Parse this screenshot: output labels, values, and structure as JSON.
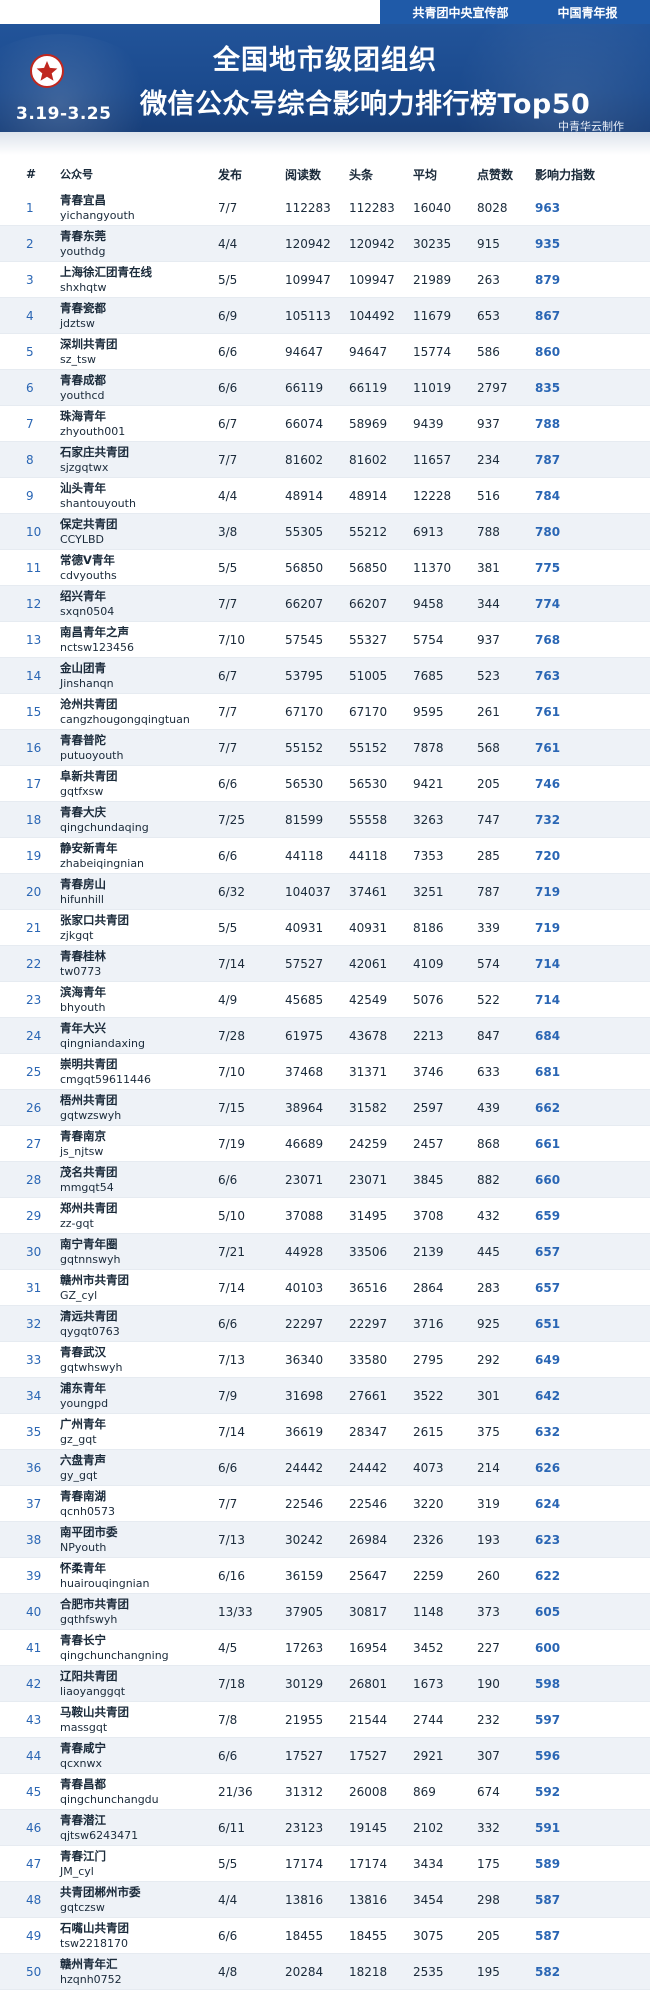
{
  "header": {
    "org": "共青团中央宣传部",
    "paper": "中国青年报",
    "title_line1": "全国地市级团组织",
    "title_line2": "微信公众号综合影响力排行榜Top50",
    "period": "3.19-3.25",
    "maker": "中青华云制作"
  },
  "columns": {
    "rank": "#",
    "account": "公众号",
    "publish": "发布",
    "reads": "阅读数",
    "headline": "头条",
    "average": "平均",
    "likes": "点赞数",
    "influence": "影响力指数"
  },
  "rows": [
    {
      "rank": "1",
      "name": "青春宜昌",
      "id": "yichangyouth",
      "publish": "7/7",
      "reads": "112283",
      "headline": "112283",
      "average": "16040",
      "likes": "8028",
      "influence": "963"
    },
    {
      "rank": "2",
      "name": "青春东莞",
      "id": "youthdg",
      "publish": "4/4",
      "reads": "120942",
      "headline": "120942",
      "average": "30235",
      "likes": "915",
      "influence": "935"
    },
    {
      "rank": "3",
      "name": "上海徐汇团青在线",
      "id": "shxhqtw",
      "publish": "5/5",
      "reads": "109947",
      "headline": "109947",
      "average": "21989",
      "likes": "263",
      "influence": "879"
    },
    {
      "rank": "4",
      "name": "青春瓷都",
      "id": "jdztsw",
      "publish": "6/9",
      "reads": "105113",
      "headline": "104492",
      "average": "11679",
      "likes": "653",
      "influence": "867"
    },
    {
      "rank": "5",
      "name": "深圳共青团",
      "id": "sz_tsw",
      "publish": "6/6",
      "reads": "94647",
      "headline": "94647",
      "average": "15774",
      "likes": "586",
      "influence": "860"
    },
    {
      "rank": "6",
      "name": "青春成都",
      "id": "youthcd",
      "publish": "6/6",
      "reads": "66119",
      "headline": "66119",
      "average": "11019",
      "likes": "2797",
      "influence": "835"
    },
    {
      "rank": "7",
      "name": "珠海青年",
      "id": "zhyouth001",
      "publish": "6/7",
      "reads": "66074",
      "headline": "58969",
      "average": "9439",
      "likes": "937",
      "influence": "788"
    },
    {
      "rank": "8",
      "name": "石家庄共青团",
      "id": "sjzgqtwx",
      "publish": "7/7",
      "reads": "81602",
      "headline": "81602",
      "average": "11657",
      "likes": "234",
      "influence": "787"
    },
    {
      "rank": "9",
      "name": "汕头青年",
      "id": "shantouyouth",
      "publish": "4/4",
      "reads": "48914",
      "headline": "48914",
      "average": "12228",
      "likes": "516",
      "influence": "784"
    },
    {
      "rank": "10",
      "name": "保定共青团",
      "id": "CCYLBD",
      "publish": "3/8",
      "reads": "55305",
      "headline": "55212",
      "average": "6913",
      "likes": "788",
      "influence": "780"
    },
    {
      "rank": "11",
      "name": "常德V青年",
      "id": "cdvyouths",
      "publish": "5/5",
      "reads": "56850",
      "headline": "56850",
      "average": "11370",
      "likes": "381",
      "influence": "775"
    },
    {
      "rank": "12",
      "name": "绍兴青年",
      "id": "sxqn0504",
      "publish": "7/7",
      "reads": "66207",
      "headline": "66207",
      "average": "9458",
      "likes": "344",
      "influence": "774"
    },
    {
      "rank": "13",
      "name": "南昌青年之声",
      "id": "nctsw123456",
      "publish": "7/10",
      "reads": "57545",
      "headline": "55327",
      "average": "5754",
      "likes": "937",
      "influence": "768"
    },
    {
      "rank": "14",
      "name": "金山团青",
      "id": "Jinshanqn",
      "publish": "6/7",
      "reads": "53795",
      "headline": "51005",
      "average": "7685",
      "likes": "523",
      "influence": "763"
    },
    {
      "rank": "15",
      "name": "沧州共青团",
      "id": "cangzhougongqingtuan",
      "publish": "7/7",
      "reads": "67170",
      "headline": "67170",
      "average": "9595",
      "likes": "261",
      "influence": "761"
    },
    {
      "rank": "16",
      "name": "青春普陀",
      "id": "putuoyouth",
      "publish": "7/7",
      "reads": "55152",
      "headline": "55152",
      "average": "7878",
      "likes": "568",
      "influence": "761"
    },
    {
      "rank": "17",
      "name": "阜新共青团",
      "id": "gqtfxsw",
      "publish": "6/6",
      "reads": "56530",
      "headline": "56530",
      "average": "9421",
      "likes": "205",
      "influence": "746"
    },
    {
      "rank": "18",
      "name": "青春大庆",
      "id": "qingchundaqing",
      "publish": "7/25",
      "reads": "81599",
      "headline": "55558",
      "average": "3263",
      "likes": "747",
      "influence": "732"
    },
    {
      "rank": "19",
      "name": "静安新青年",
      "id": "zhabeiqingnian",
      "publish": "6/6",
      "reads": "44118",
      "headline": "44118",
      "average": "7353",
      "likes": "285",
      "influence": "720"
    },
    {
      "rank": "20",
      "name": "青春房山",
      "id": "hifunhill",
      "publish": "6/32",
      "reads": "104037",
      "headline": "37461",
      "average": "3251",
      "likes": "787",
      "influence": "719"
    },
    {
      "rank": "21",
      "name": "张家口共青团",
      "id": "zjkgqt",
      "publish": "5/5",
      "reads": "40931",
      "headline": "40931",
      "average": "8186",
      "likes": "339",
      "influence": "719"
    },
    {
      "rank": "22",
      "name": "青春桂林",
      "id": "tw0773",
      "publish": "7/14",
      "reads": "57527",
      "headline": "42061",
      "average": "4109",
      "likes": "574",
      "influence": "714"
    },
    {
      "rank": "23",
      "name": "滨海青年",
      "id": "bhyouth",
      "publish": "4/9",
      "reads": "45685",
      "headline": "42549",
      "average": "5076",
      "likes": "522",
      "influence": "714"
    },
    {
      "rank": "24",
      "name": "青年大兴",
      "id": "qingniandaxing",
      "publish": "7/28",
      "reads": "61975",
      "headline": "43678",
      "average": "2213",
      "likes": "847",
      "influence": "684"
    },
    {
      "rank": "25",
      "name": "崇明共青团",
      "id": "cmgqt59611446",
      "publish": "7/10",
      "reads": "37468",
      "headline": "31371",
      "average": "3746",
      "likes": "633",
      "influence": "681"
    },
    {
      "rank": "26",
      "name": "梧州共青团",
      "id": "gqtwzswyh",
      "publish": "7/15",
      "reads": "38964",
      "headline": "31582",
      "average": "2597",
      "likes": "439",
      "influence": "662"
    },
    {
      "rank": "27",
      "name": "青春南京",
      "id": "js_njtsw",
      "publish": "7/19",
      "reads": "46689",
      "headline": "24259",
      "average": "2457",
      "likes": "868",
      "influence": "661"
    },
    {
      "rank": "28",
      "name": "茂名共青团",
      "id": "mmgqt54",
      "publish": "6/6",
      "reads": "23071",
      "headline": "23071",
      "average": "3845",
      "likes": "882",
      "influence": "660"
    },
    {
      "rank": "29",
      "name": "郑州共青团",
      "id": "zz-gqt",
      "publish": "5/10",
      "reads": "37088",
      "headline": "31495",
      "average": "3708",
      "likes": "432",
      "influence": "659"
    },
    {
      "rank": "30",
      "name": "南宁青年圈",
      "id": "gqtnnswyh",
      "publish": "7/21",
      "reads": "44928",
      "headline": "33506",
      "average": "2139",
      "likes": "445",
      "influence": "657"
    },
    {
      "rank": "31",
      "name": "赣州市共青团",
      "id": "GZ_cyl",
      "publish": "7/14",
      "reads": "40103",
      "headline": "36516",
      "average": "2864",
      "likes": "283",
      "influence": "657"
    },
    {
      "rank": "32",
      "name": "清远共青团",
      "id": "qygqt0763",
      "publish": "6/6",
      "reads": "22297",
      "headline": "22297",
      "average": "3716",
      "likes": "925",
      "influence": "651"
    },
    {
      "rank": "33",
      "name": "青春武汉",
      "id": "gqtwhswyh",
      "publish": "7/13",
      "reads": "36340",
      "headline": "33580",
      "average": "2795",
      "likes": "292",
      "influence": "649"
    },
    {
      "rank": "34",
      "name": "浦东青年",
      "id": "youngpd",
      "publish": "7/9",
      "reads": "31698",
      "headline": "27661",
      "average": "3522",
      "likes": "301",
      "influence": "642"
    },
    {
      "rank": "35",
      "name": "广州青年",
      "id": "gz_gqt",
      "publish": "7/14",
      "reads": "36619",
      "headline": "28347",
      "average": "2615",
      "likes": "375",
      "influence": "632"
    },
    {
      "rank": "36",
      "name": "六盘青声",
      "id": "gy_gqt",
      "publish": "6/6",
      "reads": "24442",
      "headline": "24442",
      "average": "4073",
      "likes": "214",
      "influence": "626"
    },
    {
      "rank": "37",
      "name": "青春南湖",
      "id": "qcnh0573",
      "publish": "7/7",
      "reads": "22546",
      "headline": "22546",
      "average": "3220",
      "likes": "319",
      "influence": "624"
    },
    {
      "rank": "38",
      "name": "南平团市委",
      "id": "NPyouth",
      "publish": "7/13",
      "reads": "30242",
      "headline": "26984",
      "average": "2326",
      "likes": "193",
      "influence": "623"
    },
    {
      "rank": "39",
      "name": "怀柔青年",
      "id": "huairouqingnian",
      "publish": "6/16",
      "reads": "36159",
      "headline": "25647",
      "average": "2259",
      "likes": "260",
      "influence": "622"
    },
    {
      "rank": "40",
      "name": "合肥市共青团",
      "id": "gqthfswyh",
      "publish": "13/33",
      "reads": "37905",
      "headline": "30817",
      "average": "1148",
      "likes": "373",
      "influence": "605"
    },
    {
      "rank": "41",
      "name": "青春长宁",
      "id": "qingchunchangning",
      "publish": "4/5",
      "reads": "17263",
      "headline": "16954",
      "average": "3452",
      "likes": "227",
      "influence": "600"
    },
    {
      "rank": "42",
      "name": "辽阳共青团",
      "id": "liaoyanggqt",
      "publish": "7/18",
      "reads": "30129",
      "headline": "26801",
      "average": "1673",
      "likes": "190",
      "influence": "598"
    },
    {
      "rank": "43",
      "name": "马鞍山共青团",
      "id": "massgqt",
      "publish": "7/8",
      "reads": "21955",
      "headline": "21544",
      "average": "2744",
      "likes": "232",
      "influence": "597"
    },
    {
      "rank": "44",
      "name": "青春咸宁",
      "id": "qcxnwx",
      "publish": "6/6",
      "reads": "17527",
      "headline": "17527",
      "average": "2921",
      "likes": "307",
      "influence": "596"
    },
    {
      "rank": "45",
      "name": "青春昌都",
      "id": "qingchunchangdu",
      "publish": "21/36",
      "reads": "31312",
      "headline": "26008",
      "average": "869",
      "likes": "674",
      "influence": "592"
    },
    {
      "rank": "46",
      "name": "青春潜江",
      "id": "qjtsw6243471",
      "publish": "6/11",
      "reads": "23123",
      "headline": "19145",
      "average": "2102",
      "likes": "332",
      "influence": "591"
    },
    {
      "rank": "47",
      "name": "青春江门",
      "id": "JM_cyl",
      "publish": "5/5",
      "reads": "17174",
      "headline": "17174",
      "average": "3434",
      "likes": "175",
      "influence": "589"
    },
    {
      "rank": "48",
      "name": "共青团郴州市委",
      "id": "gqtczsw",
      "publish": "4/4",
      "reads": "13816",
      "headline": "13816",
      "average": "3454",
      "likes": "298",
      "influence": "587"
    },
    {
      "rank": "49",
      "name": "石嘴山共青团",
      "id": "tsw2218170",
      "publish": "6/6",
      "reads": "18455",
      "headline": "18455",
      "average": "3075",
      "likes": "205",
      "influence": "587"
    },
    {
      "rank": "50",
      "name": "赣州青年汇",
      "id": "hzqnh0752",
      "publish": "4/8",
      "reads": "20284",
      "headline": "18218",
      "average": "2535",
      "likes": "195",
      "influence": "582"
    }
  ],
  "colors": {
    "banner": "#1f4f93",
    "strip": "#1f5aa8",
    "accent_number": "#2a66b4",
    "emblem_red": "#c0271f",
    "alt_row": "#eef2f7"
  },
  "icons": {
    "emblem": "star-emblem-icon"
  }
}
